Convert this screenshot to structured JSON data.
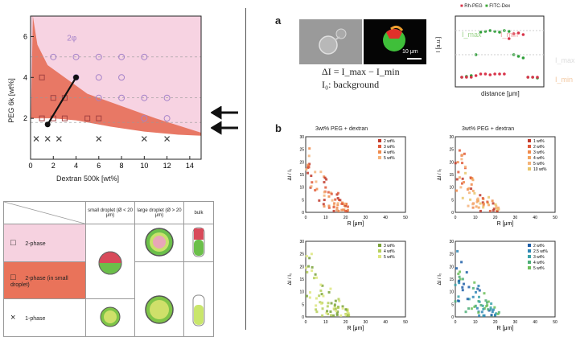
{
  "phase_diagram": {
    "xlabel": "Dextran 500k [wt%]",
    "ylabel": "PEG 6k [wt%]",
    "region_label": "2φ",
    "chart_data": {
      "type": "scatter",
      "xlim": [
        0,
        15
      ],
      "ylim": [
        0,
        7
      ],
      "xticks": [
        0,
        2,
        4,
        6,
        8,
        10,
        12,
        14
      ],
      "yticks": [
        2,
        4,
        6
      ],
      "single_phase_x": [
        {
          "x": 0.5,
          "y": 1
        },
        {
          "x": 1.5,
          "y": 1
        },
        {
          "x": 2.5,
          "y": 1
        },
        {
          "x": 6,
          "y": 1
        },
        {
          "x": 10,
          "y": 1
        },
        {
          "x": 12,
          "y": 1
        }
      ],
      "two_phase_circles": [
        {
          "x": 2,
          "y": 5
        },
        {
          "x": 4,
          "y": 5
        },
        {
          "x": 6,
          "y": 5
        },
        {
          "x": 8,
          "y": 5
        },
        {
          "x": 10,
          "y": 5
        },
        {
          "x": 4,
          "y": 4
        },
        {
          "x": 6,
          "y": 4
        },
        {
          "x": 8,
          "y": 4
        },
        {
          "x": 6,
          "y": 3
        },
        {
          "x": 8,
          "y": 3
        },
        {
          "x": 10,
          "y": 3
        },
        {
          "x": 12,
          "y": 3
        },
        {
          "x": 10,
          "y": 2
        },
        {
          "x": 12,
          "y": 2
        }
      ],
      "two_phase_squares": [
        {
          "x": 1,
          "y": 4
        },
        {
          "x": 2,
          "y": 3
        },
        {
          "x": 3,
          "y": 3
        },
        {
          "x": 1,
          "y": 2
        },
        {
          "x": 2,
          "y": 2
        },
        {
          "x": 3,
          "y": 2
        },
        {
          "x": 5,
          "y": 2
        },
        {
          "x": 6,
          "y": 2
        }
      ],
      "tie_line": [
        {
          "x": 1.5,
          "y": 1.7
        },
        {
          "x": 4,
          "y": 4
        }
      ]
    }
  },
  "legend_table": {
    "headers": [
      "small droplet (Ø < 20 μm)",
      "large droplet (Ø > 20 μm)",
      "bulk"
    ],
    "rows": [
      {
        "symbol": "□",
        "label": "2-phase"
      },
      {
        "symbol": "□",
        "label": "2-phase (in small droplet)"
      },
      {
        "symbol": "×",
        "label": "1-phase"
      }
    ]
  },
  "panel_a": {
    "letter": "a",
    "scale_bar": "10 μm",
    "eq_line1": "ΔI = I_max − I_min",
    "eq_line2": "I₀: background",
    "legend": [
      "Rh-PEG",
      "FITC-Dex"
    ],
    "profile_labels": [
      "I_max",
      "I_min"
    ],
    "side_labels": [
      "I_max",
      "I_min"
    ],
    "xlabel": "distance [μm]",
    "ylabel": "I [a.u.]"
  },
  "panel_b": {
    "letter": "b",
    "subplots": [
      {
        "title": "3wt% PEG + dextran",
        "ylabel": "ΔI / I₀",
        "xlabel": "R [μm]",
        "legend": [
          "2 wt%",
          "3 wt%",
          "4 wt%",
          "5 wt%"
        ],
        "colors": [
          "#c0392b",
          "#e05a3a",
          "#f08a4b",
          "#f5b37a"
        ]
      },
      {
        "title": "3wt% PEG + dextran",
        "ylabel": "ΔI / I₀",
        "xlabel": "R [μm]",
        "legend": [
          "1 wt%",
          "2 wt%",
          "3 wt%",
          "4 wt%",
          "5 wt%",
          "10 wt%"
        ],
        "colors": [
          "#c0392b",
          "#e05a3a",
          "#f08a4b",
          "#f3a45f",
          "#f5b37a",
          "#e8c56a"
        ]
      },
      {
        "title": "",
        "ylabel": "ΔI / I₀",
        "xlabel": "R [μm]",
        "legend": [
          "3 wt%",
          "4 wt%",
          "5 wt%"
        ],
        "colors": [
          "#7aa33a",
          "#b5cf5a",
          "#dde67e"
        ]
      },
      {
        "title": "",
        "ylabel": "ΔI / I₀",
        "xlabel": "R [μm]",
        "legend": [
          "2 wt%",
          "2.5 wt%",
          "3 wt%",
          "4 wt%",
          "5 wt%"
        ],
        "colors": [
          "#1f5fa8",
          "#2c85b5",
          "#3aa3a8",
          "#4cae77",
          "#6cbf5a"
        ]
      }
    ],
    "xticks": [
      0,
      10,
      20,
      30,
      40,
      50
    ],
    "yticks": [
      0,
      5,
      10,
      15,
      20,
      25,
      30
    ]
  }
}
